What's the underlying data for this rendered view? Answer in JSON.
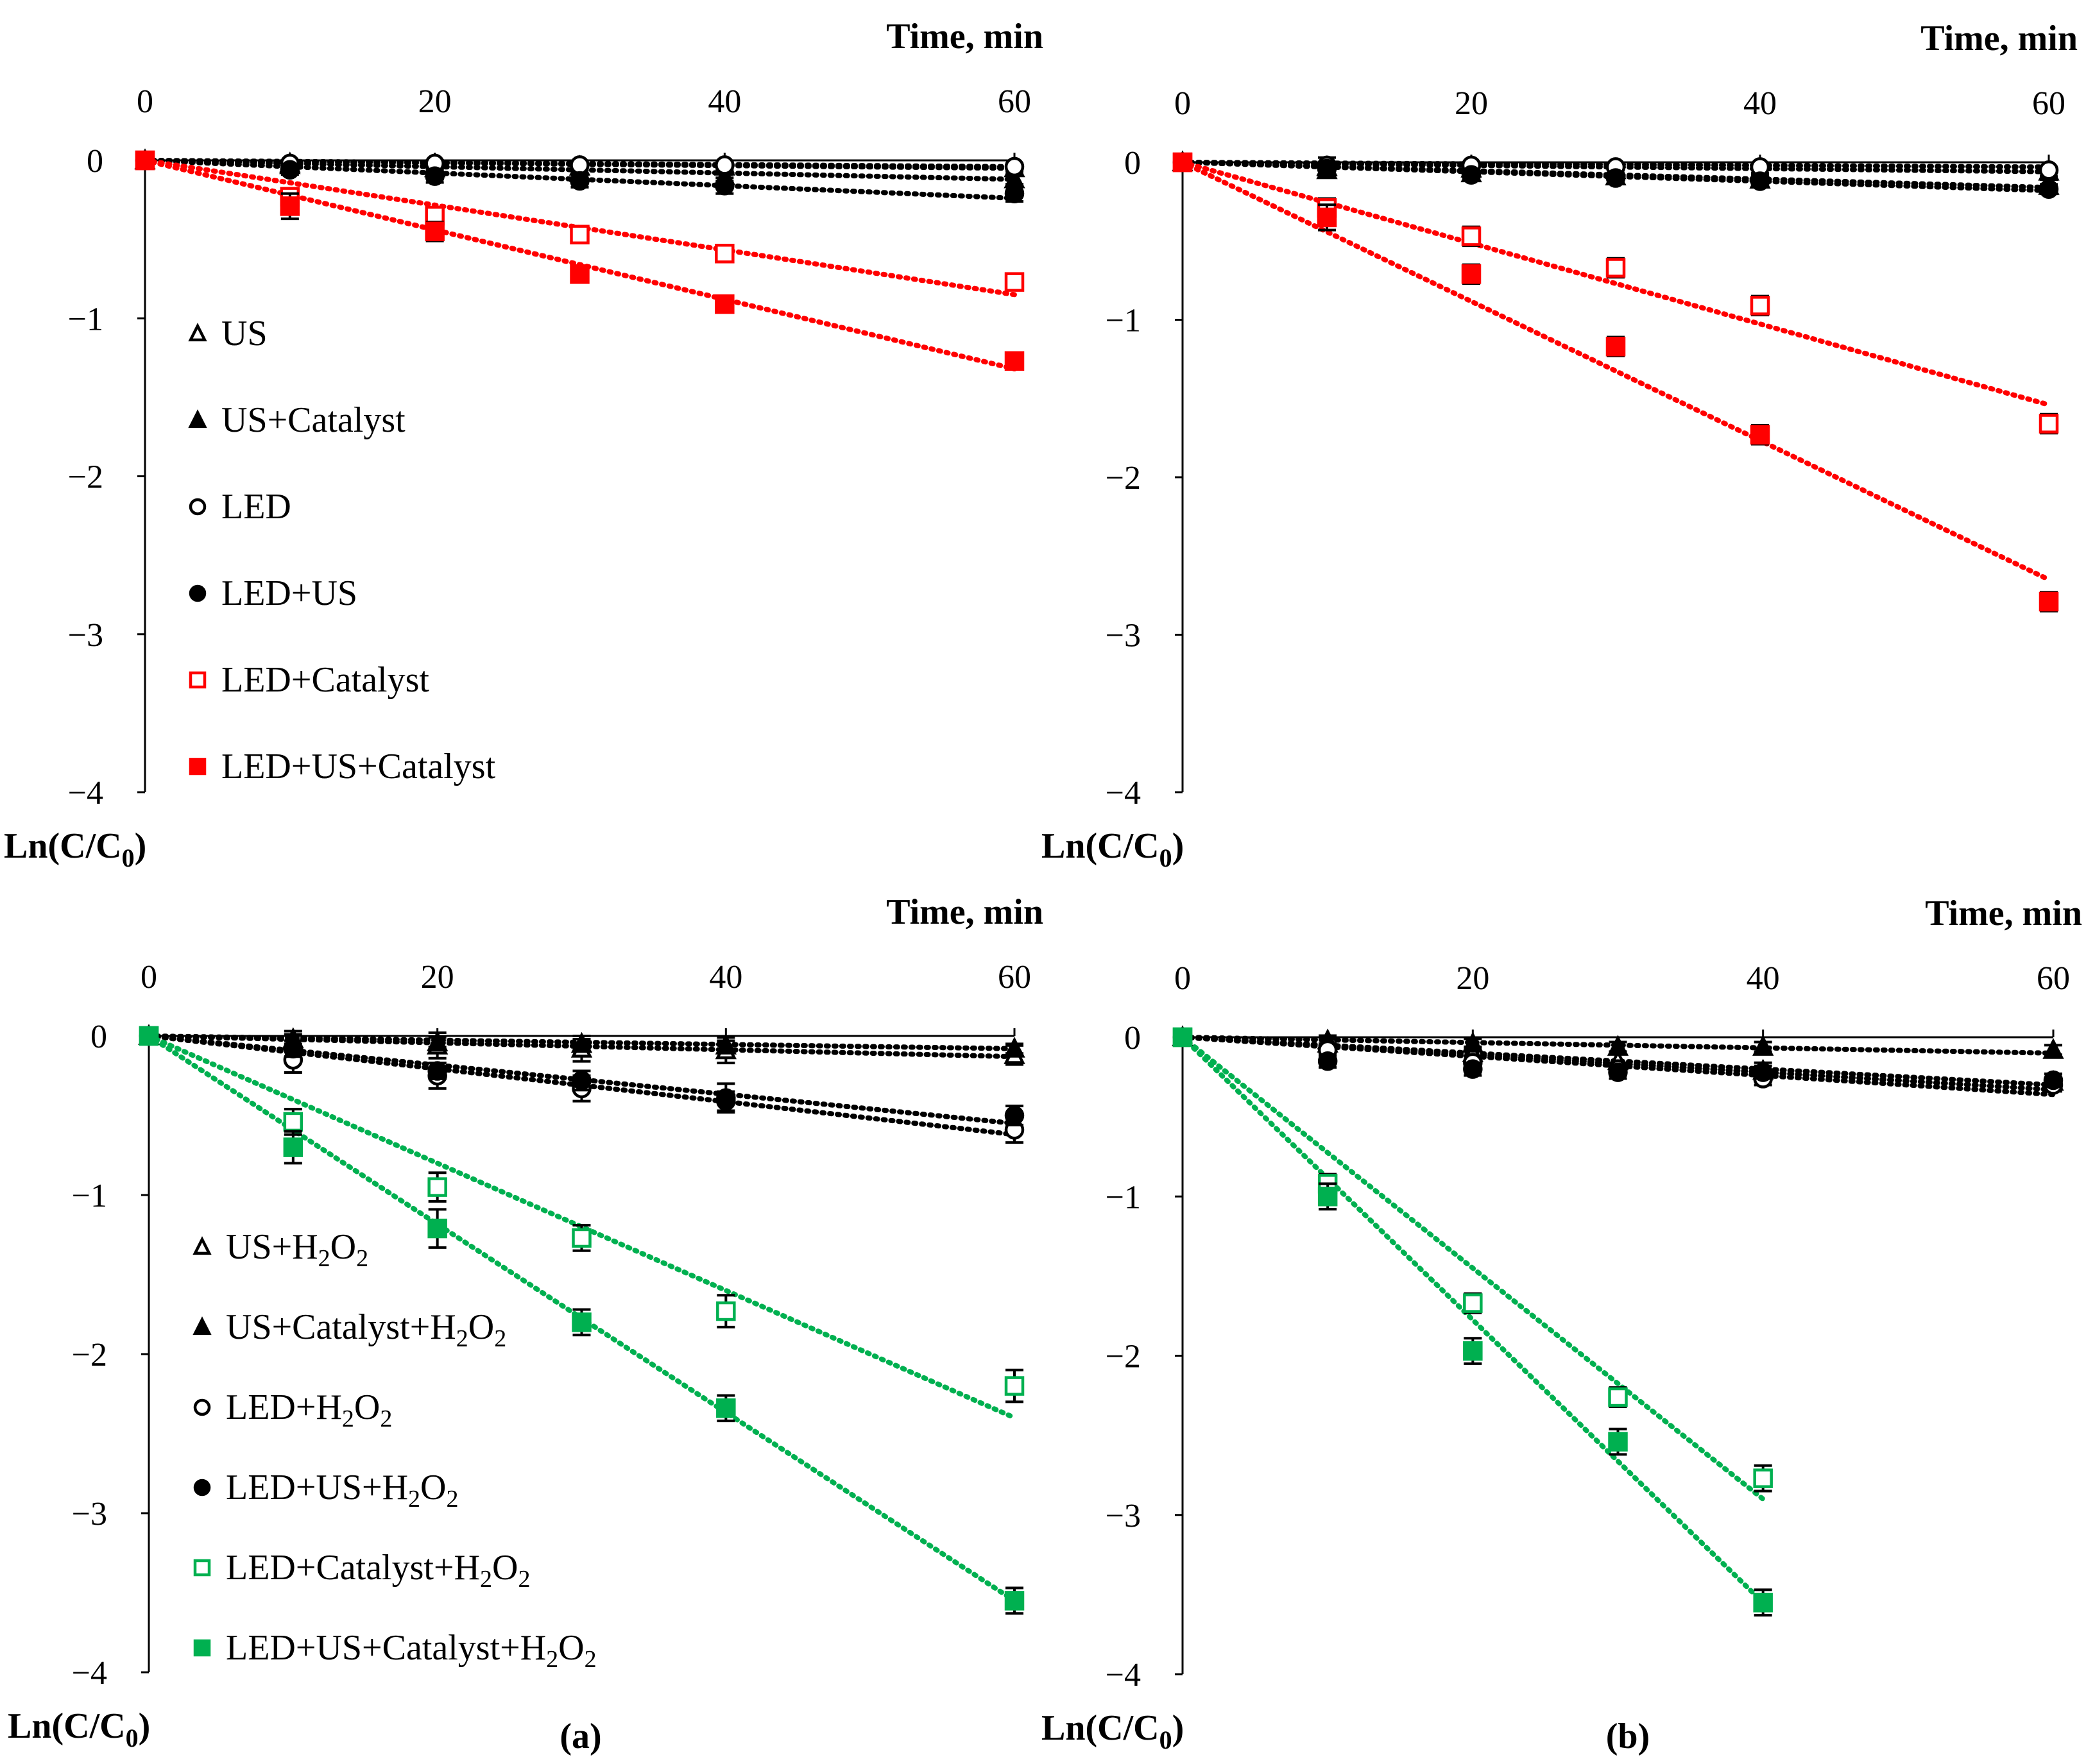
{
  "figure": {
    "label_a": "(a)",
    "label_b": "(b)"
  },
  "chart_data": [
    {
      "id": "top-left",
      "type": "scatter",
      "xlabel": "Time, min",
      "ylabel_main": "Ln(C/C",
      "ylabel_sub": "0",
      "ylabel_end": ")",
      "xlim": [
        0,
        60
      ],
      "ylim": [
        -4,
        0
      ],
      "xticks": [
        0,
        20,
        40,
        60
      ],
      "yticks": [
        0,
        -1,
        -2,
        -3,
        -4
      ],
      "ytick_labels": [
        "0",
        "−1",
        "−2",
        "−3",
        "−4"
      ],
      "legend_location": "left",
      "series": [
        {
          "name": "US",
          "legend_parts": [
            [
              "US",
              false
            ]
          ],
          "marker": "triangle-open",
          "color": "#000000",
          "x": [
            0,
            10,
            20,
            30,
            40,
            60
          ],
          "y": [
            0,
            -0.02,
            -0.03,
            -0.04,
            -0.04,
            -0.05
          ],
          "err": [
            0,
            0.02,
            0.02,
            0.02,
            0.02,
            0.02
          ],
          "fit": [
            0,
            -0.05
          ]
        },
        {
          "name": "US+Catalyst",
          "legend_parts": [
            [
              "US+Catalyst",
              false
            ]
          ],
          "marker": "triangle-filled",
          "color": "#000000",
          "x": [
            0,
            10,
            20,
            30,
            40,
            60
          ],
          "y": [
            0,
            -0.03,
            -0.05,
            -0.08,
            -0.1,
            -0.12
          ],
          "err": [
            0,
            0.02,
            0.03,
            0.03,
            0.03,
            0.03
          ],
          "fit": [
            0,
            -0.12
          ]
        },
        {
          "name": "LED",
          "legend_parts": [
            [
              "LED",
              false
            ]
          ],
          "marker": "circle-open",
          "color": "#000000",
          "x": [
            0,
            10,
            20,
            30,
            40,
            60
          ],
          "y": [
            0,
            -0.02,
            -0.02,
            -0.03,
            -0.03,
            -0.04
          ],
          "err": [
            0,
            0.02,
            0.02,
            0.02,
            0.02,
            0.02
          ],
          "fit": [
            0,
            -0.04
          ]
        },
        {
          "name": "LED+US",
          "legend_parts": [
            [
              "LED+US",
              false
            ]
          ],
          "marker": "circle-filled",
          "color": "#000000",
          "x": [
            0,
            10,
            20,
            30,
            40,
            60
          ],
          "y": [
            0,
            -0.06,
            -0.1,
            -0.13,
            -0.16,
            -0.21
          ],
          "err": [
            0,
            0.03,
            0.04,
            0.04,
            0.05,
            0.05
          ],
          "fit": [
            0,
            -0.24
          ]
        },
        {
          "name": "LED+Catalyst",
          "legend_parts": [
            [
              "LED+Catalyst",
              false
            ]
          ],
          "marker": "square-open",
          "color": "#ff0000",
          "x": [
            0,
            10,
            20,
            30,
            40,
            60
          ],
          "y": [
            0,
            -0.23,
            -0.35,
            -0.47,
            -0.59,
            -0.77
          ],
          "err": [
            0,
            0.05,
            0.05,
            0.05,
            0.05,
            0.05
          ],
          "fit": [
            0,
            -0.85
          ]
        },
        {
          "name": "LED+US+Catalyst",
          "legend_parts": [
            [
              "LED+US+Catalyst",
              false
            ]
          ],
          "marker": "square-filled",
          "color": "#ff0000",
          "x": [
            0,
            10,
            20,
            30,
            40,
            60
          ],
          "y": [
            0,
            -0.29,
            -0.45,
            -0.72,
            -0.91,
            -1.27
          ],
          "err": [
            0,
            0.08,
            0.06,
            0.05,
            0.05,
            0.05
          ],
          "fit": [
            0,
            -1.32
          ]
        }
      ]
    },
    {
      "id": "top-right",
      "type": "scatter",
      "xlabel": "Time, min",
      "ylabel_main": "Ln(C/C",
      "ylabel_sub": "0",
      "ylabel_end": ")",
      "xlim": [
        0,
        60
      ],
      "ylim": [
        -4,
        0
      ],
      "xticks": [
        0,
        20,
        40,
        60
      ],
      "yticks": [
        0,
        -1,
        -2,
        -3,
        -4
      ],
      "ytick_labels": [
        "0",
        "−1",
        "−2",
        "−3",
        "−4"
      ],
      "series": [
        {
          "name": "US",
          "marker": "triangle-open",
          "color": "#000000",
          "x": [
            0,
            10,
            20,
            30,
            40,
            60
          ],
          "y": [
            0,
            -0.03,
            -0.04,
            -0.05,
            -0.05,
            -0.06
          ],
          "err": [
            0,
            0.06,
            0.04,
            0.03,
            0.03,
            0.03
          ],
          "fit": [
            0,
            -0.06
          ]
        },
        {
          "name": "US+Catalyst",
          "marker": "triangle-filled",
          "color": "#000000",
          "x": [
            0,
            10,
            20,
            30,
            40,
            60
          ],
          "y": [
            0,
            -0.05,
            -0.07,
            -0.09,
            -0.11,
            -0.15
          ],
          "err": [
            0,
            0.04,
            0.04,
            0.04,
            0.04,
            0.04
          ],
          "fit": [
            0,
            -0.16
          ]
        },
        {
          "name": "LED",
          "marker": "circle-open",
          "color": "#000000",
          "x": [
            0,
            10,
            20,
            30,
            40,
            60
          ],
          "y": [
            0,
            -0.02,
            -0.02,
            -0.03,
            -0.03,
            -0.05
          ],
          "err": [
            0,
            0.02,
            0.02,
            0.02,
            0.02,
            0.02
          ],
          "fit": [
            0,
            -0.03
          ]
        },
        {
          "name": "LED+US",
          "marker": "circle-filled",
          "color": "#000000",
          "x": [
            0,
            10,
            20,
            30,
            40,
            60
          ],
          "y": [
            0,
            -0.04,
            -0.08,
            -0.1,
            -0.12,
            -0.17
          ],
          "err": [
            0,
            0.03,
            0.03,
            0.03,
            0.03,
            0.03
          ],
          "fit": [
            0,
            -0.18
          ]
        },
        {
          "name": "LED+Catalyst",
          "marker": "square-open",
          "color": "#ff0000",
          "x": [
            0,
            10,
            20,
            30,
            40,
            60
          ],
          "y": [
            0,
            -0.29,
            -0.47,
            -0.67,
            -0.91,
            -1.66
          ],
          "err": [
            0,
            0.06,
            0.06,
            0.06,
            0.06,
            0.06
          ],
          "fit": [
            0,
            -1.54
          ]
        },
        {
          "name": "LED+US+Catalyst",
          "marker": "square-filled",
          "color": "#ff0000",
          "x": [
            0,
            10,
            20,
            30,
            40,
            60
          ],
          "y": [
            0,
            -0.35,
            -0.71,
            -1.17,
            -1.73,
            -2.79
          ],
          "err": [
            0,
            0.08,
            0.06,
            0.06,
            0.06,
            0.06
          ],
          "fit": [
            0,
            -2.65
          ]
        }
      ]
    },
    {
      "id": "bottom-left",
      "type": "scatter",
      "xlabel": "Time, min",
      "ylabel_main": "Ln(C/C",
      "ylabel_sub": "0",
      "ylabel_end": ")",
      "xlim": [
        0,
        60
      ],
      "ylim": [
        -4,
        0
      ],
      "xticks": [
        0,
        20,
        40,
        60
      ],
      "yticks": [
        0,
        -1,
        -2,
        -3,
        -4
      ],
      "ytick_labels": [
        "0",
        "−1",
        "−2",
        "−3",
        "−4"
      ],
      "legend_location": "left",
      "series": [
        {
          "name": "US+H2O2",
          "legend_parts": [
            [
              "US+H",
              false
            ],
            [
              "2",
              true
            ],
            [
              "O",
              false
            ],
            [
              "2",
              true
            ]
          ],
          "marker": "triangle-open",
          "color": "#000000",
          "x": [
            0,
            10,
            20,
            30,
            40,
            60
          ],
          "y": [
            0,
            -0.03,
            -0.06,
            -0.08,
            -0.09,
            -0.12
          ],
          "err": [
            0,
            0.06,
            0.08,
            0.08,
            0.08,
            0.06
          ],
          "fit": [
            0,
            -0.13
          ]
        },
        {
          "name": "US+Catalyst+H2O2",
          "legend_parts": [
            [
              "US+Catalyst+H",
              false
            ],
            [
              "2",
              true
            ],
            [
              "O",
              false
            ],
            [
              "2",
              true
            ]
          ],
          "marker": "triangle-filled",
          "color": "#000000",
          "x": [
            0,
            10,
            20,
            30,
            40,
            60
          ],
          "y": [
            0,
            -0.02,
            -0.04,
            -0.05,
            -0.06,
            -0.08
          ],
          "err": [
            0,
            0.03,
            0.03,
            0.03,
            0.03,
            0.03
          ],
          "fit": [
            0,
            -0.08
          ]
        },
        {
          "name": "LED+H2O2",
          "legend_parts": [
            [
              "LED+H",
              false
            ],
            [
              "2",
              true
            ],
            [
              "O",
              false
            ],
            [
              "2",
              true
            ]
          ],
          "marker": "circle-open",
          "color": "#000000",
          "x": [
            0,
            10,
            20,
            30,
            40,
            60
          ],
          "y": [
            0,
            -0.15,
            -0.25,
            -0.33,
            -0.39,
            -0.59
          ],
          "err": [
            0,
            0.08,
            0.08,
            0.08,
            0.09,
            0.08
          ],
          "fit": [
            0,
            -0.62
          ]
        },
        {
          "name": "LED+US+H2O2",
          "legend_parts": [
            [
              "LED+US+H",
              false
            ],
            [
              "2",
              true
            ],
            [
              "O",
              false
            ],
            [
              "2",
              true
            ]
          ],
          "marker": "circle-filled",
          "color": "#000000",
          "x": [
            0,
            10,
            20,
            30,
            40,
            60
          ],
          "y": [
            0,
            -0.08,
            -0.22,
            -0.28,
            -0.41,
            -0.5
          ],
          "err": [
            0,
            0.05,
            0.05,
            0.06,
            0.06,
            0.06
          ],
          "fit": [
            0,
            -0.55
          ]
        },
        {
          "name": "LED+Catalyst+H2O2",
          "legend_parts": [
            [
              "LED+Catalyst+H",
              false
            ],
            [
              "2",
              true
            ],
            [
              "O",
              false
            ],
            [
              "2",
              true
            ]
          ],
          "marker": "square-open",
          "color": "#00b050",
          "x": [
            0,
            10,
            20,
            30,
            40,
            60
          ],
          "y": [
            0,
            -0.54,
            -0.95,
            -1.27,
            -1.73,
            -2.2
          ],
          "err": [
            0,
            0.08,
            0.09,
            0.08,
            0.1,
            0.1
          ],
          "fit": [
            0,
            -2.4
          ]
        },
        {
          "name": "LED+US+Catalyst+H2O2",
          "legend_parts": [
            [
              "LED+US+Catalyst+H",
              false
            ],
            [
              "2",
              true
            ],
            [
              "O",
              false
            ],
            [
              "2",
              true
            ]
          ],
          "marker": "square-filled",
          "color": "#00b050",
          "x": [
            0,
            10,
            20,
            30,
            40,
            60
          ],
          "y": [
            0,
            -0.7,
            -1.21,
            -1.8,
            -2.34,
            -3.55
          ],
          "err": [
            0,
            0.1,
            0.12,
            0.08,
            0.08,
            0.08
          ],
          "fit": [
            0,
            -3.55
          ]
        }
      ]
    },
    {
      "id": "bottom-right",
      "type": "scatter",
      "xlabel": "Time, min",
      "ylabel_main": "Ln(C/C",
      "ylabel_sub": "0",
      "ylabel_end": ")",
      "xlim": [
        0,
        60
      ],
      "ylim": [
        -4,
        0
      ],
      "xticks": [
        0,
        20,
        40,
        60
      ],
      "yticks": [
        0,
        -1,
        -2,
        -3,
        -4
      ],
      "ytick_labels": [
        "0",
        "−1",
        "−2",
        "−3",
        "−4"
      ],
      "series": [
        {
          "name": "US+H2O2",
          "marker": "triangle-open",
          "color": "#000000",
          "x": [
            0,
            10,
            20,
            30,
            40,
            60
          ],
          "y": [
            0,
            -0.04,
            -0.1,
            -0.15,
            -0.21,
            -0.28
          ],
          "err": [
            0,
            0.03,
            0.04,
            0.05,
            0.05,
            0.05
          ],
          "fit": [
            0,
            -0.3
          ]
        },
        {
          "name": "US+Catalyst+H2O2",
          "marker": "triangle-filled",
          "color": "#000000",
          "x": [
            0,
            10,
            20,
            30,
            40,
            60
          ],
          "y": [
            0,
            -0.02,
            -0.04,
            -0.06,
            -0.06,
            -0.08
          ],
          "err": [
            0,
            0.03,
            0.03,
            0.03,
            0.03,
            0.03
          ],
          "fit": [
            0,
            -0.1
          ]
        },
        {
          "name": "LED+H2O2",
          "marker": "circle-open",
          "color": "#000000",
          "x": [
            0,
            10,
            20,
            30,
            40,
            60
          ],
          "y": [
            0,
            -0.08,
            -0.16,
            -0.2,
            -0.26,
            -0.3
          ],
          "err": [
            0,
            0.04,
            0.04,
            0.04,
            0.04,
            0.04
          ],
          "fit": [
            0,
            -0.33
          ]
        },
        {
          "name": "LED+US+H2O2",
          "marker": "circle-filled",
          "color": "#000000",
          "x": [
            0,
            10,
            20,
            30,
            40,
            60
          ],
          "y": [
            0,
            -0.15,
            -0.2,
            -0.22,
            -0.22,
            -0.27
          ],
          "err": [
            0,
            0.04,
            0.04,
            0.04,
            0.04,
            0.04
          ],
          "fit": [
            0,
            -0.36
          ]
        },
        {
          "name": "LED+Catalyst+H2O2",
          "marker": "square-open",
          "color": "#00b050",
          "x": [
            0,
            10,
            20,
            30,
            40
          ],
          "y": [
            0,
            -0.92,
            -1.67,
            -2.26,
            -2.77
          ],
          "err": [
            0,
            0.06,
            0.06,
            0.06,
            0.08
          ],
          "fit": [
            0,
            -2.9
          ],
          "fit_x": [
            0,
            40
          ]
        },
        {
          "name": "LED+US+Catalyst+H2O2",
          "marker": "square-filled",
          "color": "#00b050",
          "x": [
            0,
            10,
            20,
            30,
            40
          ],
          "y": [
            0,
            -1.0,
            -1.97,
            -2.54,
            -3.55
          ],
          "err": [
            0,
            0.08,
            0.08,
            0.08,
            0.08
          ],
          "fit": [
            0,
            -3.55
          ],
          "fit_x": [
            0,
            40
          ]
        }
      ]
    }
  ]
}
